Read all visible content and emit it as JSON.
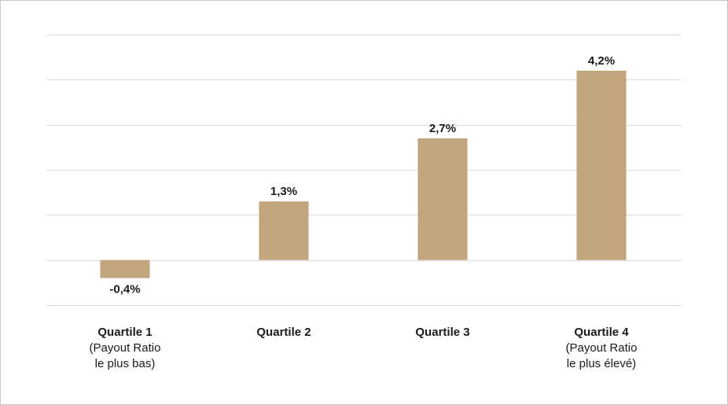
{
  "chart_data": {
    "type": "bar",
    "categories": [
      {
        "name": "Quartile 1",
        "sub": [
          "(Payout Ratio",
          "le plus bas)"
        ]
      },
      {
        "name": "Quartile 2",
        "sub": []
      },
      {
        "name": "Quartile 3",
        "sub": []
      },
      {
        "name": "Quartile 4",
        "sub": [
          "(Payout Ratio",
          "le plus élevé)"
        ]
      }
    ],
    "values": [
      -0.4,
      1.3,
      2.7,
      4.2
    ],
    "value_labels": [
      "-0,4%",
      "1,3%",
      "2,7%",
      "4,2%"
    ],
    "ylim": [
      -1,
      5
    ],
    "grid": true,
    "bar_color": "#c2a57c",
    "grid_color": "#dcdcdc"
  }
}
